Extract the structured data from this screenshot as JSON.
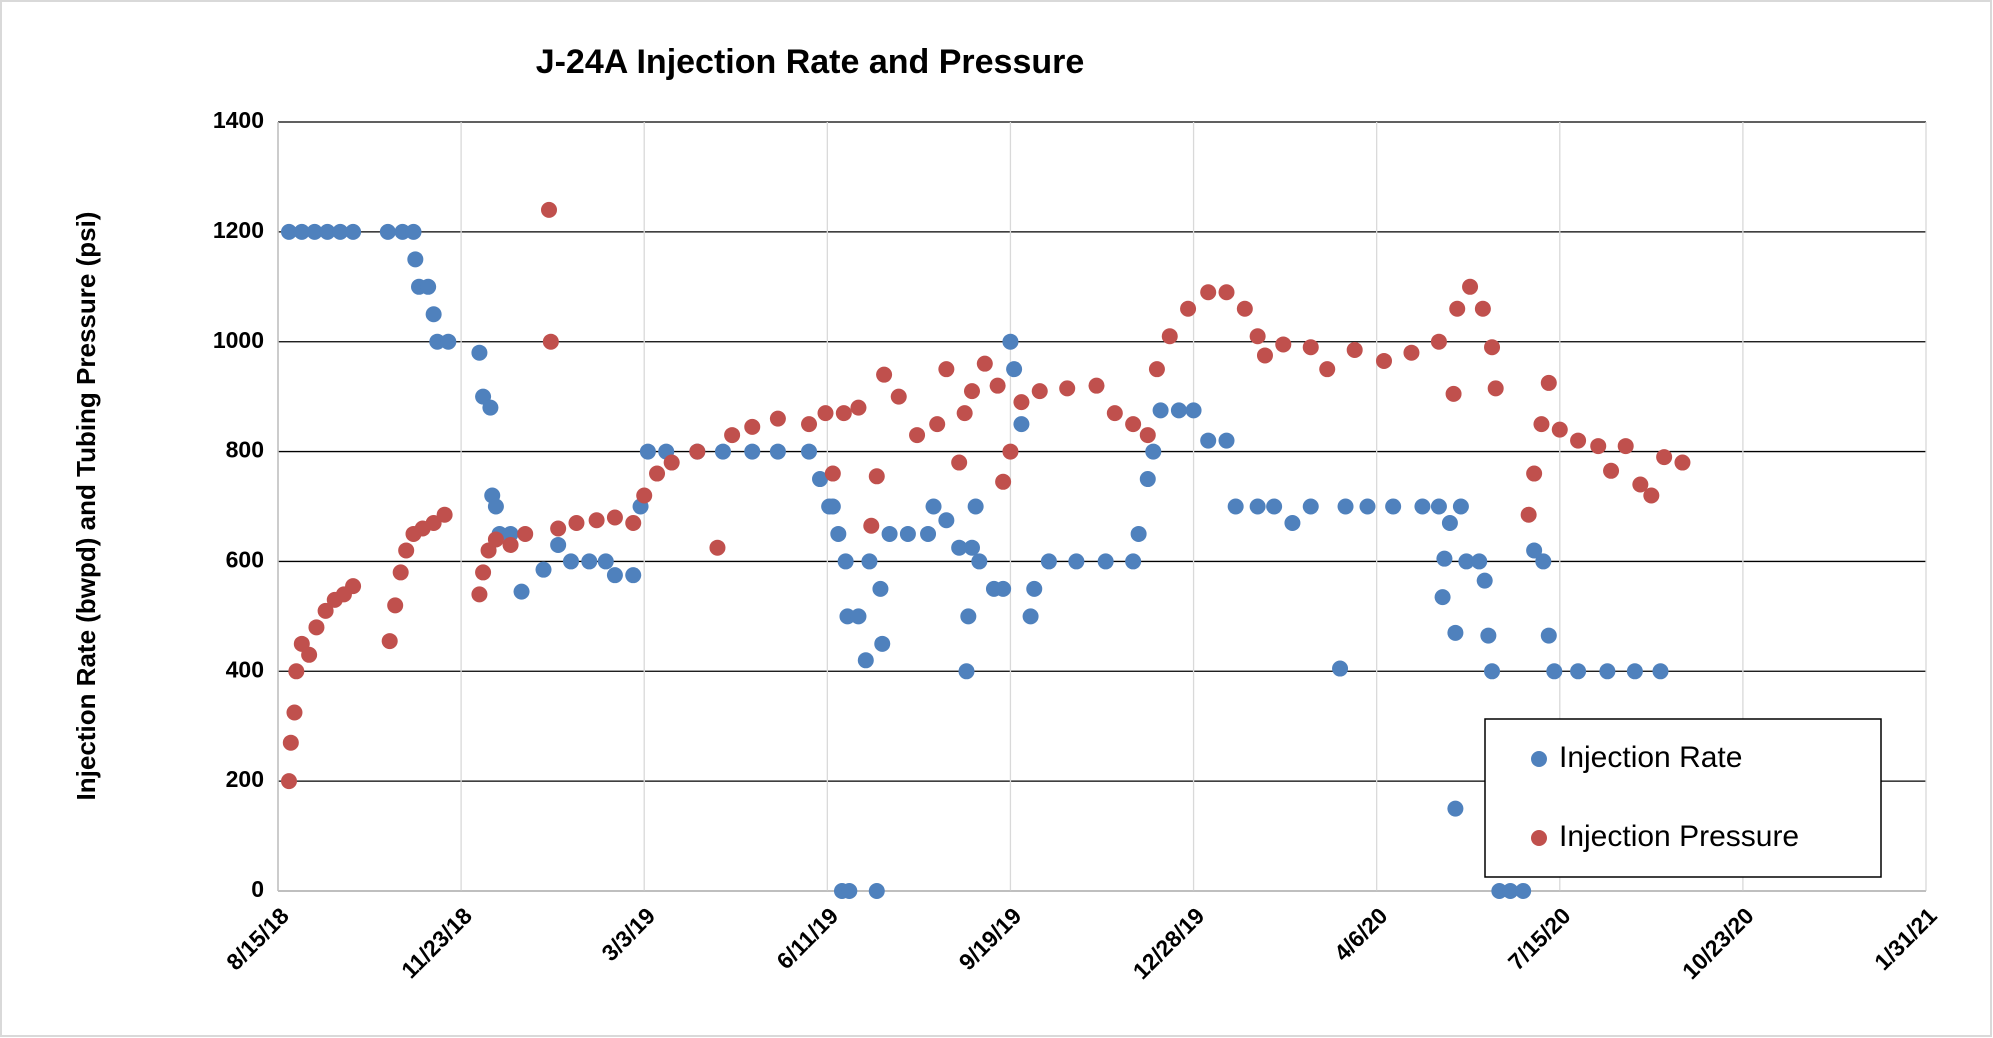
{
  "chart_data": {
    "type": "scatter",
    "title": "J-24A Injection Rate and Pressure",
    "y_label": "Injection Rate (bwpd) and Tubing Pressure (psi)",
    "xlim": [
      "8/15/18",
      "1/31/21"
    ],
    "xticks": [
      "8/15/18",
      "11/23/18",
      "3/3/19",
      "6/11/19",
      "9/19/19",
      "12/28/19",
      "4/6/20",
      "7/15/20",
      "10/23/20",
      "1/31/21"
    ],
    "ylim": [
      0,
      1400
    ],
    "yticks": [
      0,
      200,
      400,
      600,
      800,
      1000,
      1200,
      1400
    ],
    "grid": true,
    "legend": "lower right",
    "series": [
      {
        "name": "Injection Rate",
        "color": "#4f81bd",
        "x": [
          "8/21/18",
          "8/28/18",
          "9/4/18",
          "9/11/18",
          "9/18/18",
          "9/25/18",
          "10/14/18",
          "10/22/18",
          "10/28/18",
          "10/29/18",
          "10/31/18",
          "11/5/18",
          "11/8/18",
          "11/10/18",
          "11/16/18",
          "12/3/18",
          "12/5/18",
          "12/9/18",
          "12/10/18",
          "12/12/18",
          "12/14/18",
          "12/20/18",
          "12/26/18",
          "1/7/19",
          "1/15/19",
          "1/22/19",
          "2/1/19",
          "2/10/19",
          "2/15/19",
          "2/25/19",
          "3/1/19",
          "3/5/19",
          "3/15/19",
          "4/1/19",
          "4/15/19",
          "5/1/19",
          "5/15/19",
          "6/1/19",
          "6/7/19",
          "6/12/19",
          "6/14/19",
          "6/17/19",
          "6/21/19",
          "6/19/19",
          "6/23/19",
          "7/8/19",
          "6/22/19",
          "6/28/19",
          "7/2/19",
          "7/4/19",
          "7/10/19",
          "7/11/19",
          "7/15/19",
          "7/25/19",
          "8/5/19",
          "8/8/19",
          "8/15/19",
          "8/22/19",
          "8/29/19",
          "8/27/19",
          "8/26/19",
          "8/31/19",
          "9/2/19",
          "9/10/19",
          "9/15/19",
          "9/19/19",
          "9/21/19",
          "9/25/19",
          "9/30/19",
          "10/2/19",
          "10/10/19",
          "10/25/19",
          "11/10/19",
          "11/25/19",
          "11/28/19",
          "12/3/19",
          "12/6/19",
          "12/10/19",
          "12/20/19",
          "12/28/19",
          "1/5/20",
          "1/15/20",
          "1/20/20",
          "2/1/20",
          "2/10/20",
          "2/20/20",
          "3/1/20",
          "3/17/20",
          "3/20/20",
          "4/1/20",
          "4/15/20",
          "5/1/20",
          "5/10/20",
          "5/12/20",
          "5/13/20",
          "5/16/20",
          "5/19/20",
          "5/19/20",
          "5/22/20",
          "5/25/20",
          "6/1/20",
          "6/4/20",
          "6/6/20",
          "6/8/20",
          "6/12/20",
          "6/18/20",
          "6/25/20",
          "7/1/20",
          "7/6/20",
          "7/9/20",
          "7/12/20",
          "7/25/20",
          "8/10/20",
          "8/25/20",
          "9/8/20"
        ],
        "values": [
          1200,
          1200,
          1200,
          1200,
          1200,
          1200,
          1200,
          1200,
          1200,
          1150,
          1100,
          1100,
          1050,
          1000,
          1000,
          980,
          900,
          880,
          720,
          700,
          650,
          650,
          545,
          585,
          630,
          600,
          600,
          600,
          575,
          575,
          700,
          800,
          800,
          800,
          800,
          800,
          800,
          800,
          750,
          700,
          700,
          650,
          600,
          0,
          0,
          0,
          500,
          500,
          420,
          600,
          550,
          450,
          650,
          650,
          650,
          700,
          675,
          625,
          625,
          500,
          400,
          700,
          600,
          550,
          550,
          1000,
          950,
          850,
          500,
          550,
          600,
          600,
          600,
          600,
          650,
          750,
          800,
          875,
          875,
          875,
          820,
          820,
          700,
          700,
          700,
          670,
          700,
          405,
          700,
          700,
          700,
          700,
          700,
          535,
          605,
          670,
          470,
          150,
          700,
          600,
          600,
          565,
          465,
          400,
          0,
          0,
          0,
          620,
          600,
          465,
          400,
          400,
          400,
          400,
          400
        ]
      },
      {
        "name": "Injection Pressure",
        "color": "#c0504d",
        "x": [
          "8/21/18",
          "8/22/18",
          "8/24/18",
          "8/25/18",
          "8/28/18",
          "9/1/18",
          "9/5/18",
          "9/10/18",
          "9/15/18",
          "9/20/18",
          "9/25/18",
          "10/15/18",
          "10/18/18",
          "10/21/18",
          "10/24/18",
          "10/28/18",
          "11/2/18",
          "11/8/18",
          "11/14/18",
          "12/3/18",
          "12/5/18",
          "12/8/18",
          "12/12/18",
          "12/20/18",
          "12/28/18",
          "1/10/19",
          "1/11/19",
          "1/15/19",
          "1/25/19",
          "2/5/19",
          "2/15/19",
          "2/25/19",
          "3/3/19",
          "3/10/19",
          "3/18/19",
          "4/1/19",
          "4/12/19",
          "4/20/19",
          "5/1/19",
          "5/15/19",
          "6/1/19",
          "6/10/19",
          "6/14/19",
          "6/20/19",
          "6/28/19",
          "7/5/19",
          "7/8/19",
          "7/12/19",
          "7/20/19",
          "7/30/19",
          "8/10/19",
          "8/15/19",
          "8/22/19",
          "8/25/19",
          "8/29/19",
          "9/5/19",
          "9/12/19",
          "9/15/19",
          "9/19/19",
          "9/25/19",
          "10/5/19",
          "10/20/19",
          "11/5/19",
          "11/15/19",
          "11/25/19",
          "12/3/19",
          "12/8/19",
          "12/15/19",
          "12/25/19",
          "1/5/20",
          "1/15/20",
          "1/25/20",
          "2/1/20",
          "2/5/20",
          "2/15/20",
          "3/1/20",
          "3/10/20",
          "3/25/20",
          "4/10/20",
          "4/25/20",
          "5/10/20",
          "5/18/20",
          "5/20/20",
          "5/27/20",
          "6/3/20",
          "6/8/20",
          "6/10/20",
          "6/28/20",
          "7/1/20",
          "7/5/20",
          "7/9/20",
          "7/15/20",
          "7/25/20",
          "8/5/20",
          "8/12/20",
          "8/20/20",
          "8/28/20",
          "9/3/20",
          "9/10/20",
          "9/20/20"
        ],
        "values": [
          200,
          270,
          325,
          400,
          450,
          430,
          480,
          510,
          530,
          540,
          555,
          455,
          520,
          580,
          620,
          650,
          660,
          670,
          685,
          540,
          580,
          620,
          640,
          630,
          650,
          1240,
          1000,
          660,
          670,
          675,
          680,
          670,
          720,
          760,
          780,
          800,
          625,
          830,
          845,
          860,
          850,
          870,
          760,
          870,
          880,
          665,
          755,
          940,
          900,
          830,
          850,
          950,
          780,
          870,
          910,
          960,
          920,
          745,
          800,
          890,
          910,
          915,
          920,
          870,
          850,
          830,
          950,
          1010,
          1060,
          1090,
          1090,
          1060,
          1010,
          975,
          995,
          990,
          950,
          985,
          965,
          980,
          1000,
          905,
          1060,
          1100,
          1060,
          990,
          915,
          685,
          760,
          850,
          925,
          840,
          820,
          810,
          765,
          810,
          740,
          720,
          790,
          780
        ]
      }
    ]
  }
}
